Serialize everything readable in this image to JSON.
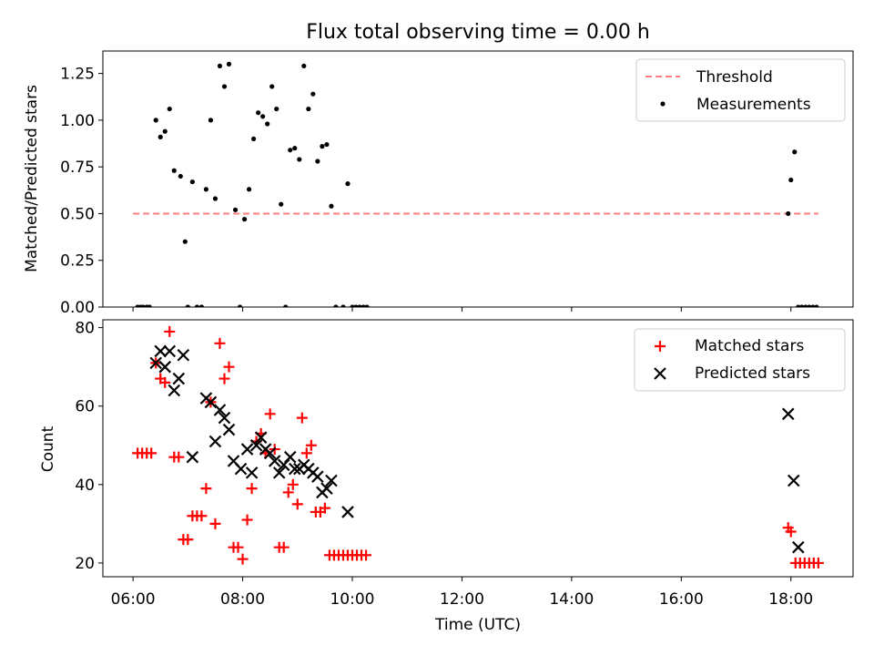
{
  "chart_data": [
    {
      "type": "scatter",
      "title": "Flux total observing time = 0.00 h",
      "ylabel": "Matched/Predicted stars",
      "xlim": [
        "05:27",
        "19:08"
      ],
      "ylim": [
        0,
        1.37
      ],
      "yticks": [
        "0.00",
        "0.25",
        "0.50",
        "0.75",
        "1.00",
        "1.25"
      ],
      "legend_position": "top-right",
      "threshold": {
        "name": "Threshold",
        "value": 0.5,
        "x": [
          "06:00",
          "18:30"
        ],
        "color": "#ff7f7f"
      },
      "series": [
        {
          "name": "Measurements",
          "color": "#000000",
          "marker": "dot",
          "points": [
            [
              "06:05",
              0
            ],
            [
              "06:08",
              0
            ],
            [
              "06:11",
              0
            ],
            [
              "06:15",
              0
            ],
            [
              "06:18",
              0
            ],
            [
              "06:25",
              1.0
            ],
            [
              "06:30",
              0.91
            ],
            [
              "06:35",
              0.94
            ],
            [
              "06:40",
              1.06
            ],
            [
              "06:45",
              0.73
            ],
            [
              "06:52",
              0.7
            ],
            [
              "06:57",
              0.35
            ],
            [
              "07:00",
              0
            ],
            [
              "07:05",
              0.67
            ],
            [
              "07:10",
              0
            ],
            [
              "07:15",
              0
            ],
            [
              "07:20",
              0.63
            ],
            [
              "07:25",
              1.0
            ],
            [
              "07:30",
              0.58
            ],
            [
              "07:35",
              1.29
            ],
            [
              "07:40",
              1.18
            ],
            [
              "07:45",
              1.3
            ],
            [
              "07:52",
              0.52
            ],
            [
              "07:57",
              0
            ],
            [
              "08:02",
              0.47
            ],
            [
              "08:07",
              0.63
            ],
            [
              "08:12",
              0.9
            ],
            [
              "08:17",
              1.04
            ],
            [
              "08:22",
              1.02
            ],
            [
              "08:27",
              0.98
            ],
            [
              "08:32",
              1.18
            ],
            [
              "08:37",
              1.06
            ],
            [
              "08:42",
              0.55
            ],
            [
              "08:47",
              0
            ],
            [
              "08:52",
              0.84
            ],
            [
              "08:57",
              0.85
            ],
            [
              "09:02",
              0.79
            ],
            [
              "09:07",
              1.29
            ],
            [
              "09:12",
              1.06
            ],
            [
              "09:17",
              1.14
            ],
            [
              "09:22",
              0.78
            ],
            [
              "09:27",
              0.86
            ],
            [
              "09:32",
              0.87
            ],
            [
              "09:37",
              0.54
            ],
            [
              "09:42",
              0
            ],
            [
              "09:50",
              0
            ],
            [
              "09:55",
              0.66
            ],
            [
              "10:00",
              0
            ],
            [
              "10:04",
              0
            ],
            [
              "10:08",
              0
            ],
            [
              "10:12",
              0
            ],
            [
              "10:16",
              0
            ],
            [
              "17:57",
              0.5
            ],
            [
              "18:00",
              0.68
            ],
            [
              "18:04",
              0.83
            ],
            [
              "18:08",
              0
            ],
            [
              "18:12",
              0
            ],
            [
              "18:16",
              0
            ],
            [
              "18:20",
              0
            ],
            [
              "18:24",
              0
            ],
            [
              "18:28",
              0
            ]
          ]
        }
      ]
    },
    {
      "type": "scatter",
      "xlabel": "Time (UTC)",
      "ylabel": "Count",
      "xlim": [
        "05:27",
        "19:08"
      ],
      "xticks": [
        "06:00",
        "08:00",
        "10:00",
        "12:00",
        "14:00",
        "16:00",
        "18:00"
      ],
      "ylim": [
        16.5,
        82
      ],
      "yticks": [
        "20",
        "40",
        "60",
        "80"
      ],
      "legend_position": "top-right",
      "series": [
        {
          "name": "Matched stars",
          "color": "#ff0000",
          "marker": "plus",
          "points": [
            [
              "06:05",
              48
            ],
            [
              "06:10",
              48
            ],
            [
              "06:15",
              48
            ],
            [
              "06:20",
              48
            ],
            [
              "06:25",
              71
            ],
            [
              "06:30",
              67
            ],
            [
              "06:35",
              66
            ],
            [
              "06:40",
              79
            ],
            [
              "06:45",
              47
            ],
            [
              "06:50",
              47
            ],
            [
              "06:55",
              26
            ],
            [
              "07:00",
              26
            ],
            [
              "07:05",
              32
            ],
            [
              "07:10",
              32
            ],
            [
              "07:15",
              32
            ],
            [
              "07:20",
              39
            ],
            [
              "07:25",
              61
            ],
            [
              "07:30",
              30
            ],
            [
              "07:35",
              76
            ],
            [
              "07:40",
              67
            ],
            [
              "07:45",
              70
            ],
            [
              "07:50",
              24
            ],
            [
              "07:55",
              24
            ],
            [
              "08:00",
              21
            ],
            [
              "08:05",
              31
            ],
            [
              "08:10",
              39
            ],
            [
              "08:15",
              51
            ],
            [
              "08:20",
              53
            ],
            [
              "08:25",
              48
            ],
            [
              "08:30",
              58
            ],
            [
              "08:35",
              49
            ],
            [
              "08:40",
              24
            ],
            [
              "08:45",
              24
            ],
            [
              "08:50",
              38
            ],
            [
              "08:55",
              40
            ],
            [
              "09:00",
              35
            ],
            [
              "09:05",
              57
            ],
            [
              "09:10",
              48
            ],
            [
              "09:15",
              50
            ],
            [
              "09:20",
              33
            ],
            [
              "09:25",
              33
            ],
            [
              "09:30",
              34
            ],
            [
              "09:35",
              22
            ],
            [
              "09:40",
              22
            ],
            [
              "09:45",
              22
            ],
            [
              "09:50",
              22
            ],
            [
              "09:55",
              22
            ],
            [
              "10:00",
              22
            ],
            [
              "10:05",
              22
            ],
            [
              "10:10",
              22
            ],
            [
              "10:15",
              22
            ],
            [
              "17:57",
              29
            ],
            [
              "18:00",
              28
            ],
            [
              "18:05",
              20
            ],
            [
              "18:10",
              20
            ],
            [
              "18:15",
              20
            ],
            [
              "18:20",
              20
            ],
            [
              "18:25",
              20
            ],
            [
              "18:30",
              20
            ]
          ]
        },
        {
          "name": "Predicted stars",
          "color": "#000000",
          "marker": "x",
          "points": [
            [
              "06:25",
              71
            ],
            [
              "06:30",
              74
            ],
            [
              "06:35",
              70
            ],
            [
              "06:40",
              74
            ],
            [
              "06:45",
              64
            ],
            [
              "06:50",
              67
            ],
            [
              "06:55",
              73
            ],
            [
              "07:05",
              47
            ],
            [
              "07:20",
              62
            ],
            [
              "07:25",
              61
            ],
            [
              "07:30",
              51
            ],
            [
              "07:35",
              59
            ],
            [
              "07:40",
              57
            ],
            [
              "07:45",
              54
            ],
            [
              "07:50",
              46
            ],
            [
              "07:58",
              44
            ],
            [
              "08:05",
              49
            ],
            [
              "08:10",
              43
            ],
            [
              "08:15",
              50
            ],
            [
              "08:20",
              52
            ],
            [
              "08:25",
              49
            ],
            [
              "08:30",
              48
            ],
            [
              "08:35",
              46
            ],
            [
              "08:40",
              43
            ],
            [
              "08:45",
              45
            ],
            [
              "08:52",
              47
            ],
            [
              "08:57",
              44
            ],
            [
              "09:02",
              44
            ],
            [
              "09:07",
              45
            ],
            [
              "09:12",
              44
            ],
            [
              "09:17",
              43
            ],
            [
              "09:22",
              42
            ],
            [
              "09:27",
              38
            ],
            [
              "09:32",
              39
            ],
            [
              "09:37",
              41
            ],
            [
              "09:55",
              33
            ],
            [
              "17:57",
              58
            ],
            [
              "18:03",
              41
            ],
            [
              "18:08",
              24
            ]
          ]
        }
      ]
    }
  ]
}
